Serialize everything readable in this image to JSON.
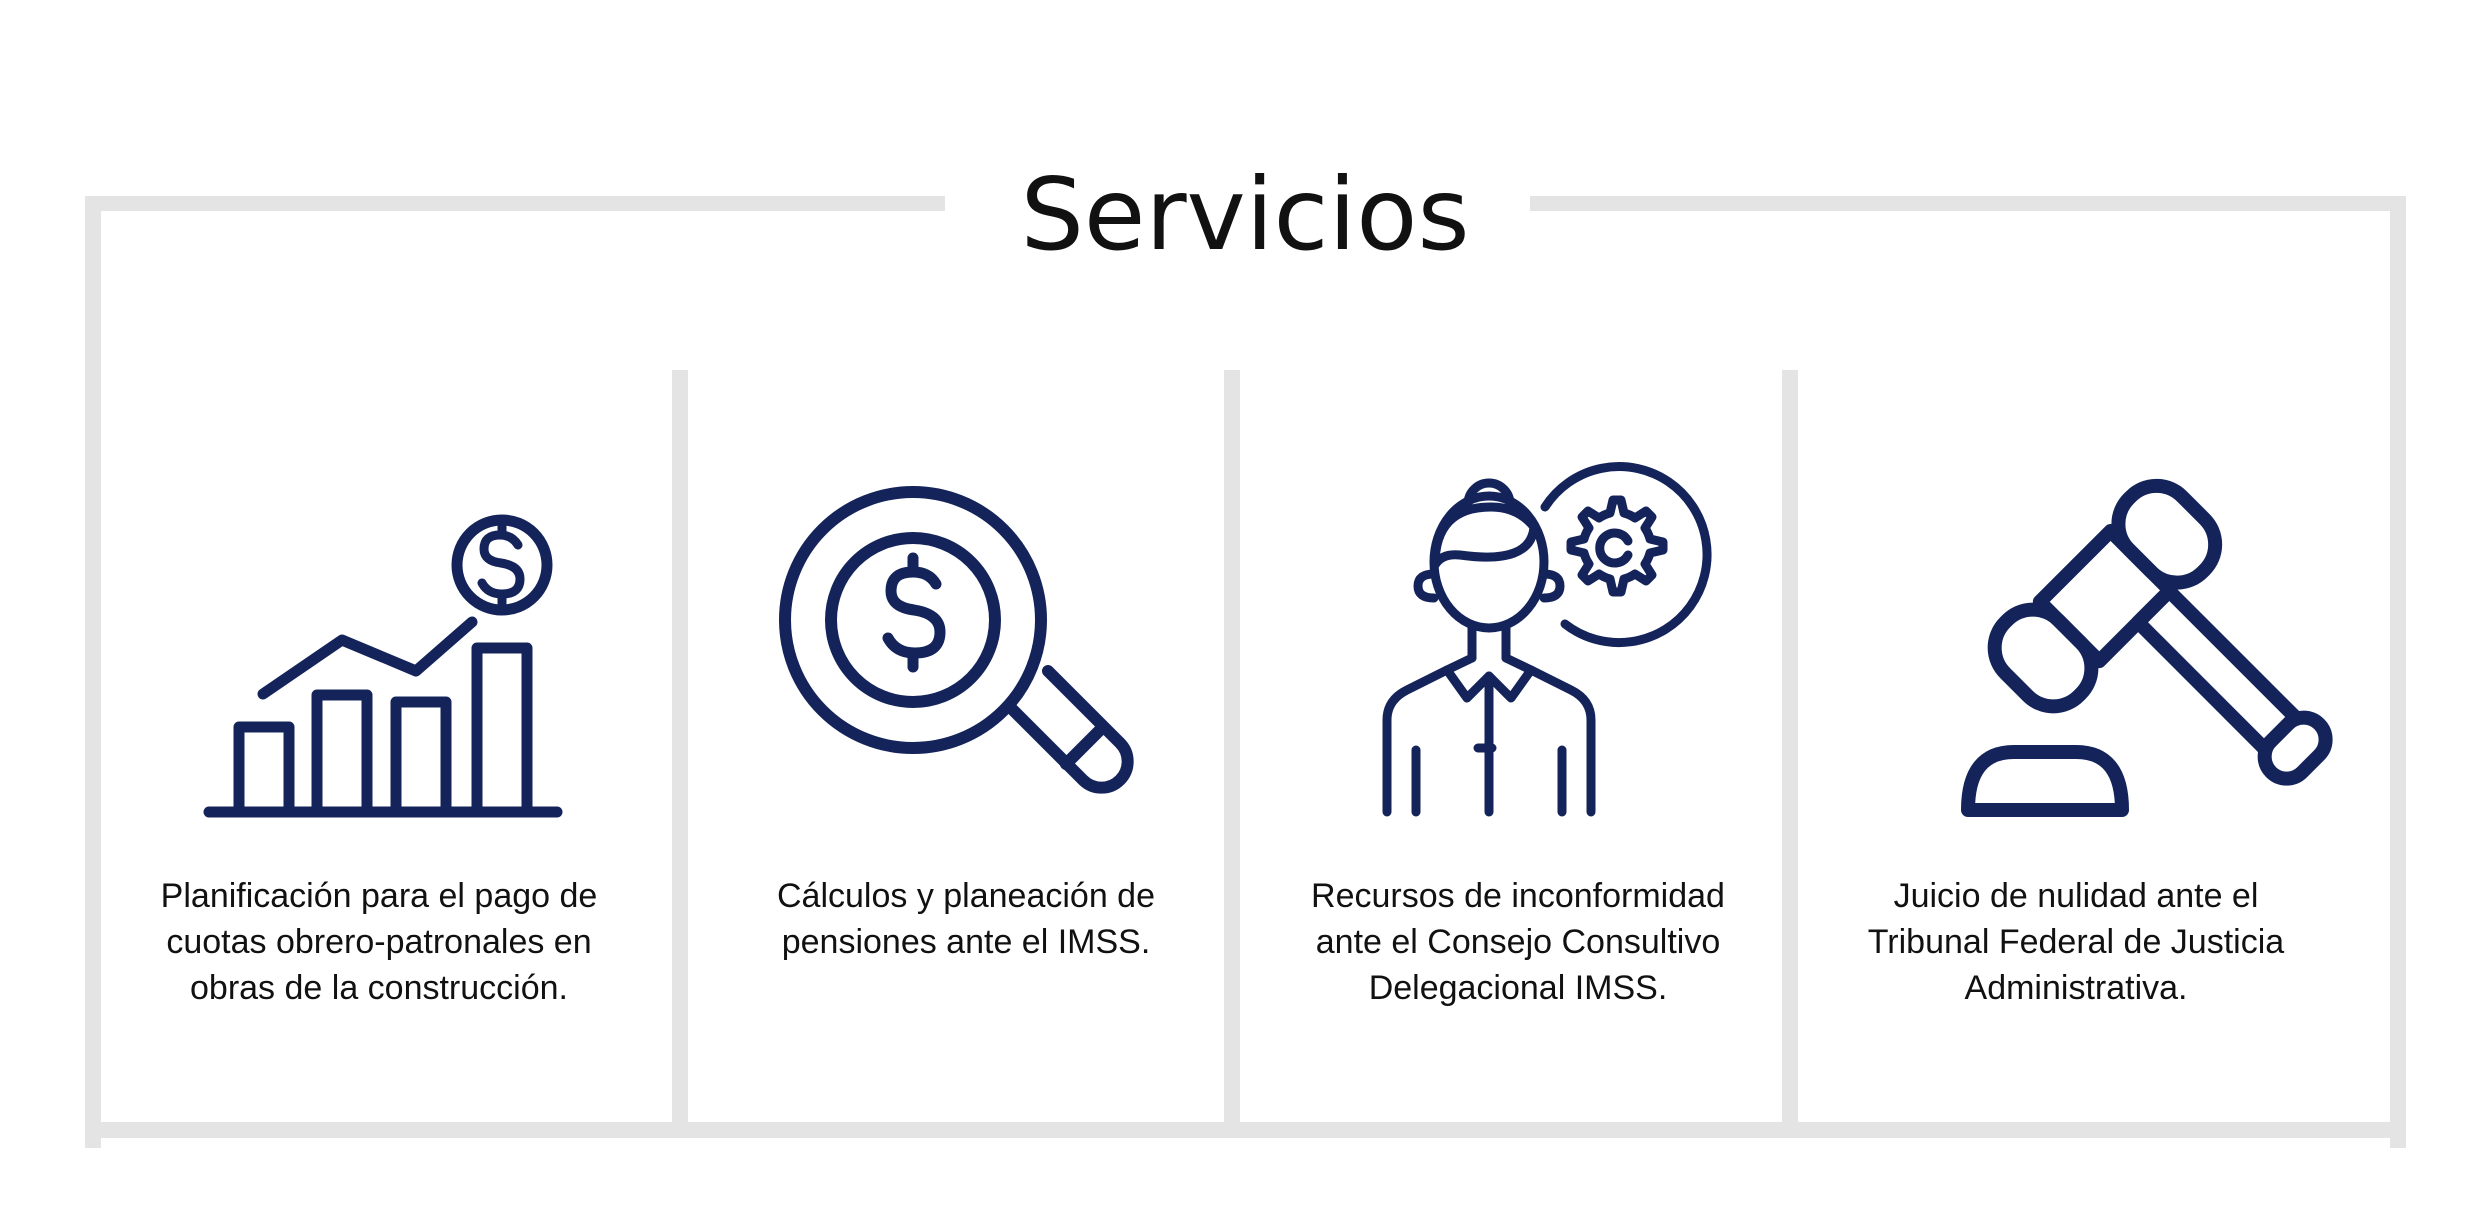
{
  "section": {
    "title": "Servicios"
  },
  "colors": {
    "icon": "#14245a",
    "frame": "#e4e4e4",
    "text": "#111111"
  },
  "services": [
    {
      "icon": "growth-chart-dollar-icon",
      "description": "Planificación para el pago de\ncuotas obrero-patronales en\nobras de la construcción."
    },
    {
      "icon": "magnifier-dollar-icon",
      "description": "Cálculos y planeación de\npensiones ante el IMSS."
    },
    {
      "icon": "consultant-gear-icon",
      "description": "Recursos de inconformidad\nante el Consejo Consultivo\nDelegacional IMSS."
    },
    {
      "icon": "gavel-icon",
      "description": "Juicio de nulidad ante el\nTribunal Federal de Justicia\nAdministrativa."
    }
  ]
}
